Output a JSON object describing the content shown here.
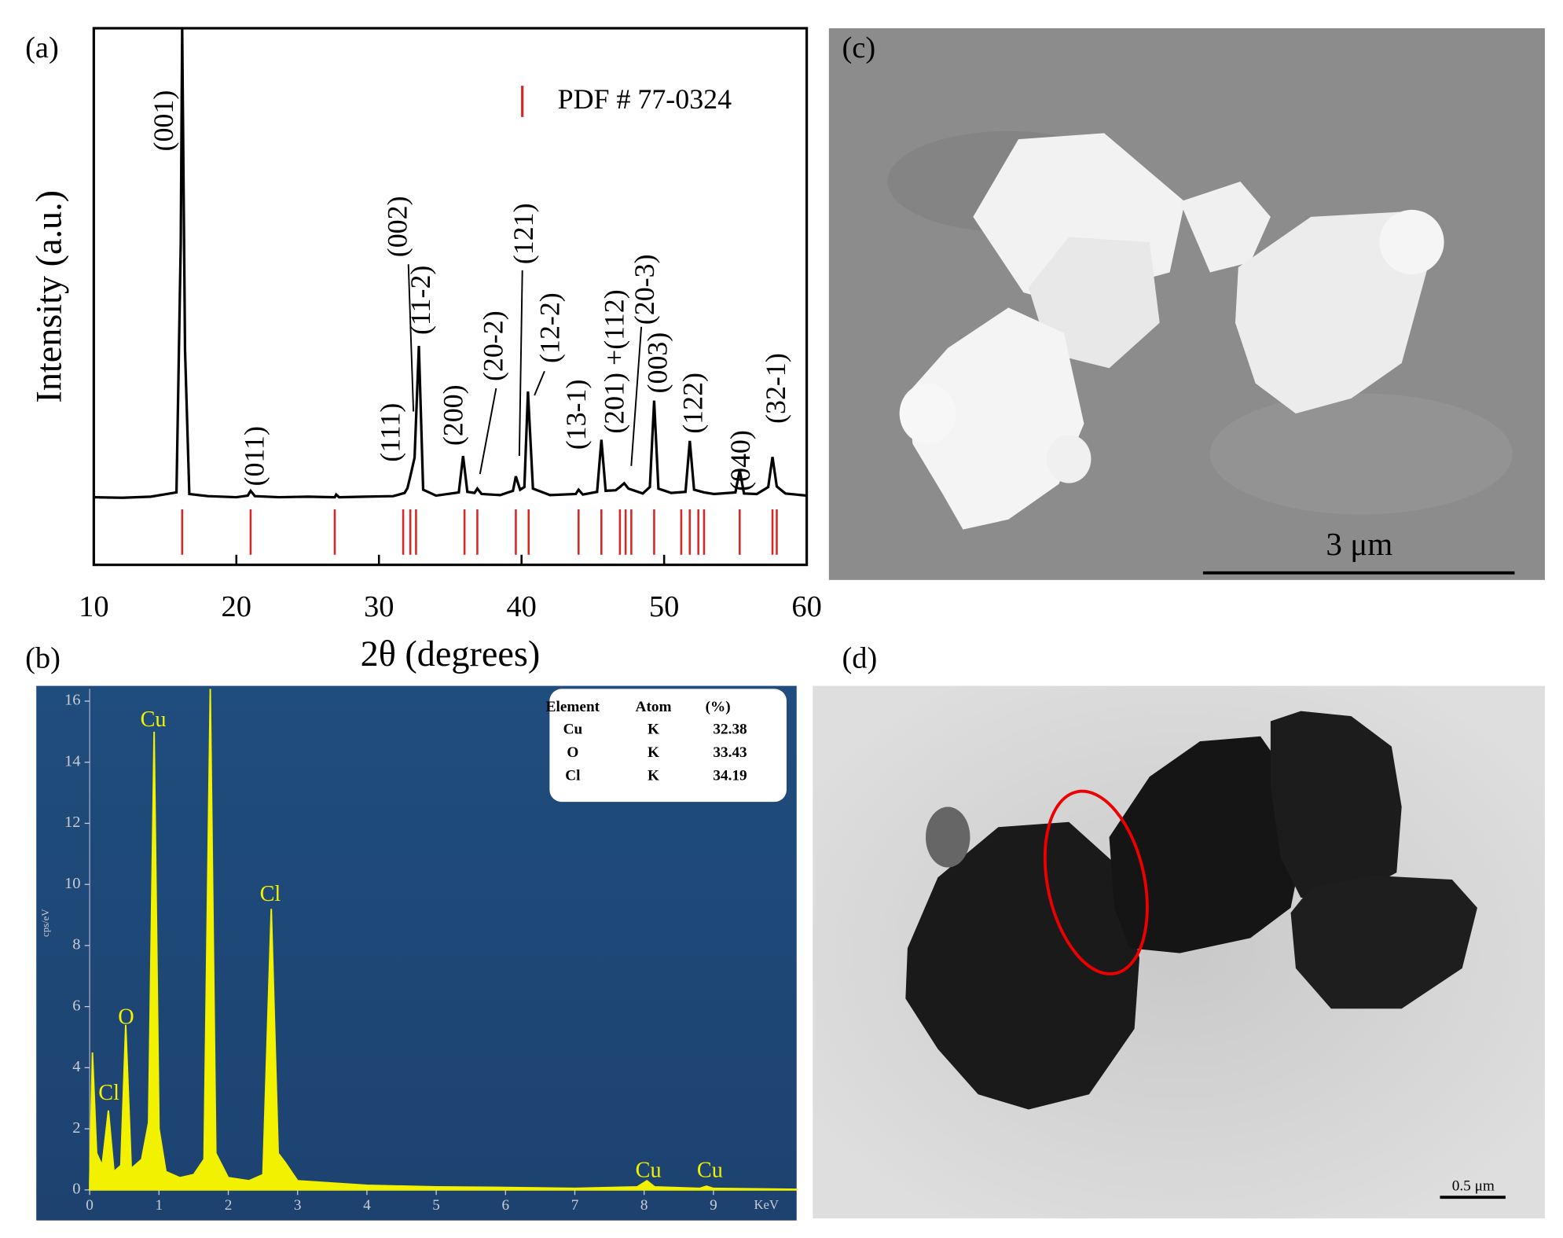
{
  "chart_data": [
    {
      "type": "line",
      "panel": "(a)",
      "x_label": "2θ (degrees)",
      "y_label": "Intensity (a.u.)",
      "xlim": [
        10,
        60
      ],
      "xticks": [
        10,
        20,
        30,
        40,
        50,
        60
      ],
      "ylim": [
        0,
        100
      ],
      "legend": "upper right",
      "series": [
        {
          "color": "#000000",
          "x": [
            10,
            12,
            14,
            15.8,
            16.1,
            16.2,
            16.4,
            16.7,
            18,
            20,
            20.8,
            21.0,
            21.3,
            23,
            25,
            26.9,
            27.0,
            27.2,
            29,
            31,
            31.8,
            32.0,
            32.2,
            32.5,
            32.8,
            33.1,
            34,
            35.6,
            35.9,
            36.2,
            36.7,
            36.9,
            37.2,
            38.5,
            39.4,
            39.6,
            39.9,
            40.2,
            40.45,
            40.8,
            42,
            43.8,
            44.0,
            44.3,
            45.3,
            45.6,
            45.9,
            46.6,
            46.9,
            47.2,
            47.5,
            48.5,
            49.0,
            49.3,
            49.6,
            50.5,
            51.5,
            51.8,
            52.1,
            52.8,
            53.5,
            55.0,
            55.3,
            55.6,
            56.5,
            57.3,
            57.6,
            57.9,
            58.5,
            60
          ],
          "values": [
            12.6,
            12.5,
            12.7,
            13.5,
            60,
            100,
            40,
            13.2,
            12.8,
            12.6,
            12.9,
            13.8,
            12.8,
            12.6,
            12.7,
            12.6,
            13.1,
            12.6,
            12.7,
            12.8,
            13.4,
            14.3,
            16.5,
            20,
            40.8,
            14,
            12.9,
            13.5,
            20.3,
            13.6,
            13.4,
            14.2,
            13.2,
            13,
            13.8,
            16.5,
            14,
            14.5,
            32.3,
            14.2,
            13,
            13.2,
            14,
            13.1,
            13.6,
            23.3,
            13.8,
            13.9,
            14.5,
            15.2,
            14.2,
            13.3,
            14.5,
            30.6,
            14.2,
            13.4,
            13.6,
            23.1,
            14,
            13.5,
            13.2,
            13.5,
            17.7,
            13.3,
            13.2,
            14.5,
            20.1,
            14.6,
            13.3,
            12.9
          ]
        }
      ],
      "reference": {
        "name": "PDF # 77-0324",
        "color": "#d62728",
        "x": [
          16.2,
          21,
          26.9,
          31.7,
          32.2,
          32.6,
          36,
          36.9,
          39.6,
          40.5,
          44.0,
          45.6,
          46.9,
          47.3,
          47.7,
          49.3,
          51.2,
          51.8,
          52.4,
          52.8,
          55.3,
          57.6,
          57.9
        ]
      },
      "annotations": [
        "(001)",
        "(011)",
        "(111)",
        "(002)",
        "(11-2)",
        "(200)",
        "(20-2)",
        "(121)",
        "(12-2)",
        "(13-1)",
        "(201) +(112)",
        "(20-3)",
        "(003)",
        "(122)",
        "(040)",
        "(32-1)"
      ]
    },
    {
      "type": "area",
      "panel": "(b)",
      "x_label": "KeV",
      "y_label": "cps/eV",
      "xlim": [
        -0.77,
        10.2
      ],
      "xticks": [
        0,
        1,
        2,
        3,
        4,
        5,
        6,
        7,
        8,
        9
      ],
      "ylim": [
        -1,
        16.4
      ],
      "yticks": [
        0,
        2,
        4,
        6,
        8,
        10,
        12,
        14,
        16
      ],
      "series": [
        {
          "color": "#f2f200",
          "x": [
            0,
            0.04,
            0.1,
            0.18,
            0.27,
            0.35,
            0.45,
            0.52,
            0.6,
            0.75,
            0.85,
            0.93,
            1.0,
            1.1,
            1.3,
            1.5,
            1.65,
            1.74,
            1.82,
            2.0,
            2.3,
            2.5,
            2.62,
            2.72,
            2.82,
            3.0,
            4,
            5,
            6,
            7,
            7.9,
            8.04,
            8.15,
            8.8,
            8.9,
            9.0,
            10.2
          ],
          "values": [
            0.2,
            4.5,
            1.2,
            0.8,
            2.6,
            0.6,
            0.8,
            5.4,
            0.7,
            1,
            2.2,
            15,
            2,
            0.6,
            0.4,
            0.5,
            1,
            16.4,
            1.2,
            0.4,
            0.3,
            0.5,
            9.2,
            1.2,
            0.9,
            0.3,
            0.15,
            0.1,
            0.08,
            0.05,
            0.1,
            0.3,
            0.1,
            0.05,
            0.12,
            0.05,
            0.02
          ]
        }
      ],
      "annotations": [
        "Cu",
        "O",
        "Cl",
        "Cl",
        "Cu",
        "Cu"
      ],
      "table": {
        "header": [
          "Element",
          "Atom",
          "(%)"
        ],
        "rows": [
          [
            "Cu",
            "K",
            32.38
          ],
          [
            "O",
            "K",
            33.43
          ],
          [
            "Cl",
            "K",
            34.19
          ]
        ]
      }
    }
  ],
  "images": [
    {
      "label": "(c)",
      "scale_bar": "3 μm"
    },
    {
      "label": "(d)",
      "scale_bar": "0.5 μm"
    }
  ]
}
